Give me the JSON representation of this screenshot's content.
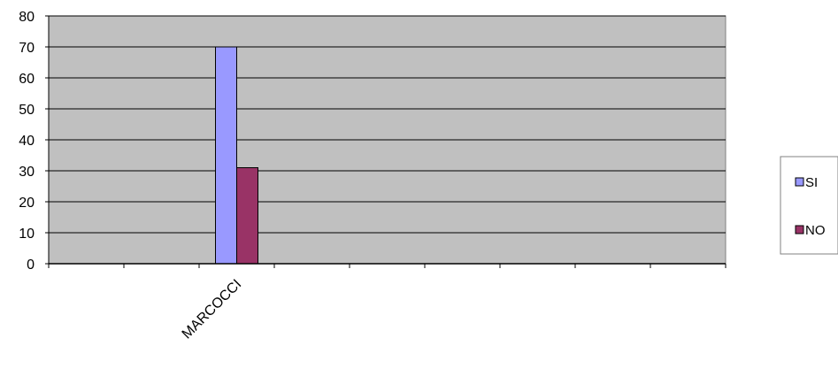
{
  "chart_data": {
    "type": "bar",
    "categories": [
      "",
      "",
      "MARCOCCI",
      "",
      "",
      "",
      "",
      "",
      ""
    ],
    "series": [
      {
        "name": "SI",
        "values": [
          null,
          null,
          70,
          null,
          null,
          null,
          null,
          null,
          null
        ],
        "color": "#9999ff"
      },
      {
        "name": "NO",
        "values": [
          null,
          null,
          31,
          null,
          null,
          null,
          null,
          null,
          null
        ],
        "color": "#993366"
      }
    ],
    "title": "",
    "xlabel": "",
    "ylabel": "",
    "ylim": [
      0,
      80
    ],
    "yticks": [
      0,
      10,
      20,
      30,
      40,
      50,
      60,
      70,
      80
    ],
    "grid": true,
    "plot_background": "#c0c0c0",
    "legend_position": "right"
  }
}
